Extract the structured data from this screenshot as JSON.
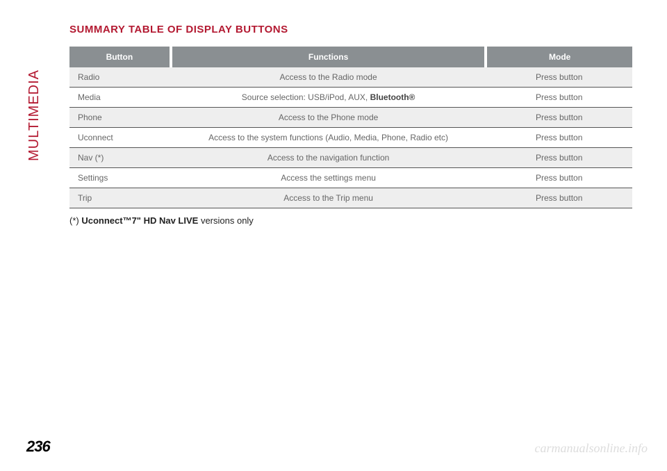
{
  "sidebar_label": "MULTIMEDIA",
  "title": "SUMMARY TABLE OF DISPLAY BUTTONS",
  "table": {
    "headers": [
      "Button",
      "Functions",
      "Mode"
    ],
    "rows": [
      {
        "button": "Radio",
        "function_pre": "Access to the Radio mode",
        "function_bold": "",
        "function_post": "",
        "mode": "Press button"
      },
      {
        "button": "Media",
        "function_pre": "Source selection: USB/iPod, AUX, ",
        "function_bold": "Bluetooth®",
        "function_post": "",
        "mode": "Press button"
      },
      {
        "button": "Phone",
        "function_pre": "Access to the Phone mode",
        "function_bold": "",
        "function_post": "",
        "mode": "Press button"
      },
      {
        "button": "Uconnect",
        "function_pre": "Access to the system functions (Audio, Media, Phone, Radio etc)",
        "function_bold": "",
        "function_post": "",
        "mode": "Press button"
      },
      {
        "button": "Nav (*)",
        "function_pre": "Access to the navigation function",
        "function_bold": "",
        "function_post": "",
        "mode": "Press button"
      },
      {
        "button": "Settings",
        "function_pre": "Access the settings menu",
        "function_bold": "",
        "function_post": "",
        "mode": "Press button"
      },
      {
        "button": "Trip",
        "function_pre": "Access to the Trip menu",
        "function_bold": "",
        "function_post": "",
        "mode": "Press button"
      }
    ],
    "col_widths": [
      "18%",
      "56%",
      "26%"
    ]
  },
  "footnote": {
    "pre": "(*) ",
    "bold": "Uconnect™7\" HD Nav LIVE",
    "post": " versions only"
  },
  "page_number": "236",
  "watermark": "carmanualsonline.info",
  "colors": {
    "accent": "#b31931",
    "header_bg": "#8a8f92",
    "row_odd": "#eeeeee",
    "row_border": "#555555",
    "watermark": "#dddddd"
  }
}
